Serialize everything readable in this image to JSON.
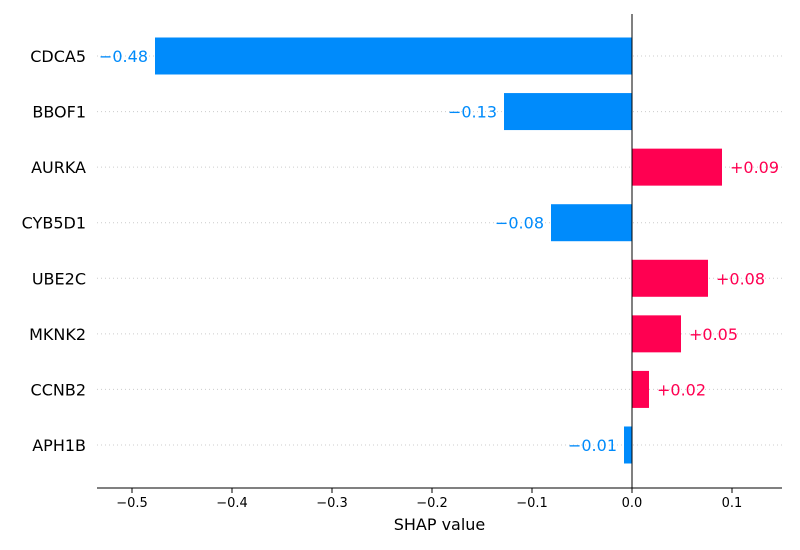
{
  "chart_data": {
    "type": "bar",
    "orientation": "horizontal",
    "categories": [
      "CDCA5",
      "BBOF1",
      "AURKA",
      "CYB5D1",
      "UBE2C",
      "MKNK2",
      "CCNB2",
      "APH1B"
    ],
    "values": [
      -0.477,
      -0.128,
      0.09,
      -0.081,
      0.076,
      0.049,
      0.017,
      -0.008
    ],
    "value_labels": [
      "−0.48",
      "−0.13",
      "+0.09",
      "−0.08",
      "+0.08",
      "+0.05",
      "+0.02",
      "−0.01"
    ],
    "xlabel": "SHAP value",
    "xlim": [
      -0.535,
      0.15
    ],
    "xticks": [
      -0.5,
      -0.4,
      -0.3,
      -0.2,
      -0.1,
      0.0,
      0.1
    ],
    "xtick_labels": [
      "−0.5",
      "−0.4",
      "−0.3",
      "−0.2",
      "−0.1",
      "0.0",
      "0.1"
    ],
    "colors": {
      "negative": "#008bfb",
      "positive": "#ff0051",
      "zero_line": "#000000",
      "grid": "#cccccc"
    },
    "grid": "horizontal dotted",
    "title": ""
  }
}
